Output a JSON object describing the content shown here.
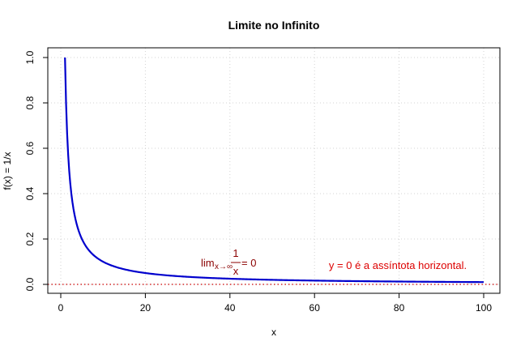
{
  "chart_data": {
    "type": "line",
    "title": "Limite no Infinito",
    "xlabel": "x",
    "ylabel": "f(x) = 1/x",
    "xlim": [
      0,
      100
    ],
    "ylim": [
      0,
      1
    ],
    "xticks": [
      0,
      20,
      40,
      60,
      80,
      100
    ],
    "yticks": [
      0.0,
      0.2,
      0.4,
      0.6,
      0.8,
      1.0
    ],
    "xtick_labels": [
      "0",
      "20",
      "40",
      "60",
      "80",
      "100"
    ],
    "ytick_labels": [
      "0.0",
      "0.2",
      "0.4",
      "0.6",
      "0.8",
      "1.0"
    ],
    "grid": true,
    "series": [
      {
        "function": "1/x",
        "color": "#0000cd",
        "x": [
          1,
          1.5,
          2,
          2.5,
          3,
          4,
          5,
          6,
          7,
          8,
          10,
          12,
          15,
          20,
          25,
          30,
          40,
          50,
          60,
          70,
          80,
          90,
          100
        ],
        "y": [
          1.0,
          0.667,
          0.5,
          0.4,
          0.333,
          0.25,
          0.2,
          0.167,
          0.143,
          0.125,
          0.1,
          0.083,
          0.067,
          0.05,
          0.04,
          0.033,
          0.025,
          0.02,
          0.017,
          0.014,
          0.0125,
          0.011,
          0.01
        ]
      }
    ],
    "asymptote": {
      "y": 0,
      "color": "#cc0000",
      "style": "dotted"
    },
    "annotations": {
      "limit": {
        "lim": "lim",
        "sub": "x→∞",
        "numerator": "1",
        "denominator": "x",
        "rhs": "= 0",
        "color": "#8b0000"
      },
      "asymptote_text": {
        "text": "y = 0 é a assíntota horizontal.",
        "color": "#dd0000"
      }
    }
  }
}
